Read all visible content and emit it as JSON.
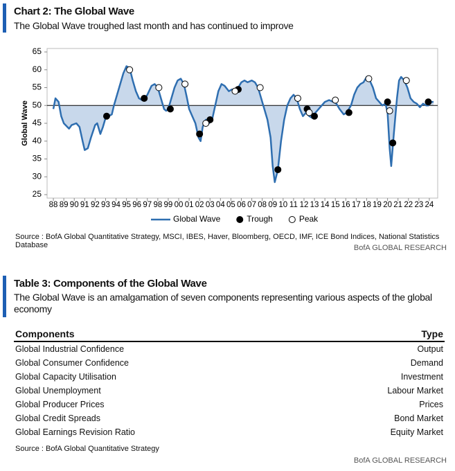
{
  "chart_data": {
    "type": "line",
    "title": "Chart 2: The Global Wave",
    "subtitle": "The Global Wave troughed last month and has continued to improve",
    "y_label": "Global Wave",
    "x": [
      1988.0,
      1988.2,
      1988.5,
      1988.75,
      1989.0,
      1989.5,
      1989.75,
      1990.2,
      1990.5,
      1990.8,
      1991.0,
      1991.3,
      1991.6,
      1992.0,
      1992.2,
      1992.5,
      1992.75,
      1993.0,
      1993.3,
      1993.6,
      1993.8,
      1994.1,
      1994.4,
      1994.7,
      1995.0,
      1995.3,
      1995.6,
      1995.9,
      1996.2,
      1996.5,
      1996.8,
      1997.0,
      1997.4,
      1997.7,
      1998.0,
      1998.3,
      1998.6,
      1998.8,
      1999.0,
      1999.3,
      1999.6,
      1999.9,
      2000.2,
      2000.5,
      2000.8,
      2001.0,
      2001.3,
      2001.6,
      2001.9,
      2002.1,
      2002.3,
      2002.6,
      2002.9,
      2003.2,
      2003.5,
      2003.8,
      2004.1,
      2004.4,
      2004.8,
      2005.1,
      2005.4,
      2005.7,
      2006.0,
      2006.3,
      2006.6,
      2007.0,
      2007.3,
      2007.6,
      2007.9,
      2008.2,
      2008.5,
      2008.8,
      2009.0,
      2009.2,
      2009.5,
      2009.8,
      2010.1,
      2010.4,
      2010.7,
      2011.0,
      2011.3,
      2011.6,
      2011.9,
      2012.2,
      2012.5,
      2012.8,
      2013.1,
      2013.4,
      2013.7,
      2014.0,
      2014.4,
      2014.8,
      2015.1,
      2015.4,
      2015.8,
      2016.1,
      2016.5,
      2016.8,
      2017.1,
      2017.4,
      2017.7,
      2018.0,
      2018.3,
      2018.6,
      2018.9,
      2019.2,
      2019.5,
      2019.8,
      2020.0,
      2020.2,
      2020.35,
      2020.6,
      2020.9,
      2021.1,
      2021.3,
      2021.6,
      2021.9,
      2022.2,
      2022.5,
      2022.8,
      2023.1,
      2023.4,
      2023.7,
      2023.9,
      2024.2,
      2024.4
    ],
    "series": [
      {
        "name": "Global Wave",
        "color": "#2e6eb0",
        "values": [
          49,
          52,
          51,
          47,
          45,
          43.5,
          44.5,
          45,
          44,
          40,
          37.5,
          38,
          41,
          44.5,
          45,
          42,
          44,
          46.5,
          47,
          47.5,
          50,
          53,
          56,
          59,
          61,
          60.5,
          57,
          54,
          52,
          51.5,
          52,
          53,
          55.5,
          56,
          55,
          52,
          49,
          48.5,
          49,
          52,
          55,
          57,
          57.5,
          56,
          52,
          49,
          47,
          45,
          41,
          40,
          44,
          46,
          45,
          46,
          50,
          54,
          56,
          55.5,
          54,
          54.5,
          54,
          55,
          56.5,
          57,
          56.5,
          57,
          56.5,
          55,
          52,
          49,
          46,
          41,
          33,
          28.5,
          32,
          40,
          46,
          50,
          52,
          53,
          52,
          49,
          47,
          48,
          47,
          46.5,
          48,
          49,
          50,
          51,
          51.5,
          51,
          50.5,
          49,
          47.5,
          48,
          50,
          53,
          55,
          56,
          56.5,
          58,
          57,
          55,
          52,
          51,
          50,
          50.5,
          48,
          38,
          33,
          42,
          52,
          57,
          58,
          57,
          55,
          52,
          51,
          50.5,
          49.5,
          50.5,
          50,
          50,
          51,
          51
        ]
      },
      {
        "name": "Trough",
        "color": "#000000",
        "marker": "filled",
        "x": [
          1993.1,
          1996.7,
          1999.2,
          2002.0,
          2003.0,
          2005.7,
          2009.5,
          2012.3,
          2013.0,
          2016.3,
          2020.0,
          2020.5,
          2023.9
        ],
        "values": [
          47,
          52,
          49,
          42,
          46,
          54.5,
          32,
          49,
          47,
          48,
          51,
          39.5,
          51
        ]
      },
      {
        "name": "Peak",
        "color": "#000000",
        "marker": "open",
        "x": [
          1995.3,
          1998.1,
          2000.6,
          2002.6,
          2005.4,
          2007.8,
          2011.4,
          2012.5,
          2015.0,
          2018.2,
          2020.2,
          2021.8
        ],
        "values": [
          60,
          55,
          56,
          45,
          54,
          55,
          52,
          48,
          51.5,
          57.5,
          48.5,
          57
        ]
      }
    ],
    "fill_color": "#c8d8eb",
    "reference_line": 50,
    "xlim": [
      1987.4,
      2024.8
    ],
    "xticks": [
      {
        "value": 1988,
        "label": "88"
      },
      {
        "value": 1989,
        "label": "89"
      },
      {
        "value": 1990,
        "label": "90"
      },
      {
        "value": 1991,
        "label": "91"
      },
      {
        "value": 1992,
        "label": "92"
      },
      {
        "value": 1993,
        "label": "93"
      },
      {
        "value": 1994,
        "label": "94"
      },
      {
        "value": 1995,
        "label": "95"
      },
      {
        "value": 1996,
        "label": "96"
      },
      {
        "value": 1997,
        "label": "97"
      },
      {
        "value": 1998,
        "label": "98"
      },
      {
        "value": 1999,
        "label": "99"
      },
      {
        "value": 2000,
        "label": "00"
      },
      {
        "value": 2001,
        "label": "01"
      },
      {
        "value": 2002,
        "label": "02"
      },
      {
        "value": 2003,
        "label": "03"
      },
      {
        "value": 2004,
        "label": "04"
      },
      {
        "value": 2005,
        "label": "05"
      },
      {
        "value": 2006,
        "label": "06"
      },
      {
        "value": 2007,
        "label": "07"
      },
      {
        "value": 2008,
        "label": "08"
      },
      {
        "value": 2009,
        "label": "09"
      },
      {
        "value": 2010,
        "label": "10"
      },
      {
        "value": 2011,
        "label": "11"
      },
      {
        "value": 2012,
        "label": "12"
      },
      {
        "value": 2013,
        "label": "13"
      },
      {
        "value": 2014,
        "label": "14"
      },
      {
        "value": 2015,
        "label": "15"
      },
      {
        "value": 2016,
        "label": "16"
      },
      {
        "value": 2017,
        "label": "17"
      },
      {
        "value": 2018,
        "label": "18"
      },
      {
        "value": 2019,
        "label": "19"
      },
      {
        "value": 2020,
        "label": "20"
      },
      {
        "value": 2021,
        "label": "21"
      },
      {
        "value": 2022,
        "label": "22"
      },
      {
        "value": 2023,
        "label": "23"
      },
      {
        "value": 2024,
        "label": "24"
      }
    ],
    "ylim": [
      25,
      65
    ],
    "yticks": [
      25,
      30,
      35,
      40,
      45,
      50,
      55,
      60,
      65
    ],
    "legend": "bottom",
    "source": "Source : BofA Global Quantitative Strategy, MSCI, IBES, Haver, Bloomberg, OECD, IMF, ICE Bond Indices, National Statistics Database",
    "credit": "BofA GLOBAL RESEARCH"
  },
  "table": {
    "title": "Table 3: Components of the Global Wave",
    "subtitle": "The Global Wave is an amalgamation of seven components representing various aspects of the global economy",
    "columns": [
      "Components",
      "Type"
    ],
    "rows": [
      [
        "Global Industrial Confidence",
        "Output"
      ],
      [
        "Global Consumer Confidence",
        "Demand"
      ],
      [
        "Global Capacity Utilisation",
        "Investment"
      ],
      [
        "Global Unemployment",
        "Labour Market"
      ],
      [
        "Global Producer Prices",
        "Prices"
      ],
      [
        "Global Credit Spreads",
        "Bond Market"
      ],
      [
        "Global Earnings Revision Ratio",
        "Equity Market"
      ]
    ],
    "source": "Source : BofA Global Quantitative Strategy",
    "credit": "BofA GLOBAL RESEARCH"
  }
}
